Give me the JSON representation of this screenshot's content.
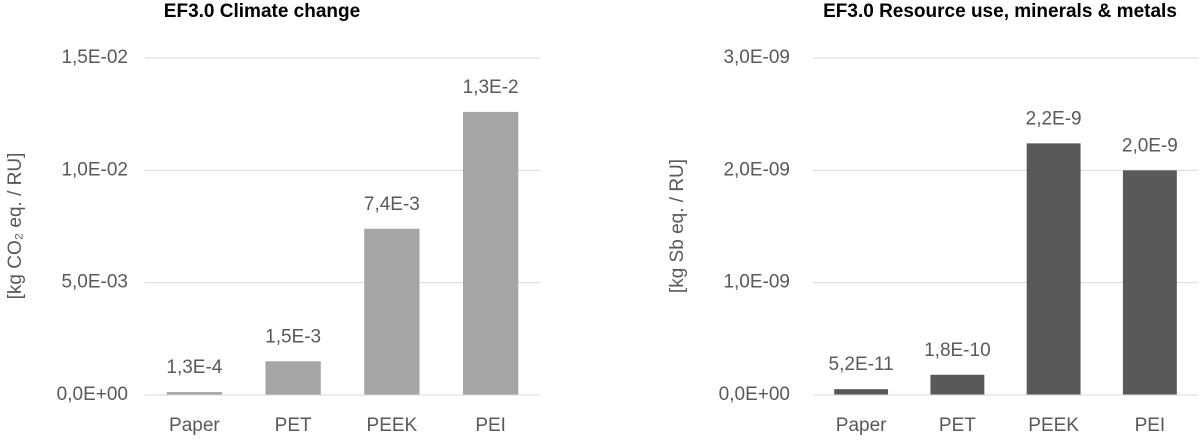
{
  "chart_data": [
    {
      "type": "bar",
      "title": "EF3.0 Climate change",
      "y_label": "[kg CO₂ eq. / RU]",
      "categories": [
        "Paper",
        "PET",
        "PEEK",
        "PEI"
      ],
      "values": [
        0.00013,
        0.0015,
        0.0074,
        0.0126
      ],
      "value_labels": [
        "1,3E-4",
        "1,5E-3",
        "7,4E-3",
        "1,3E-2"
      ],
      "color": "#a5a5a5",
      "ylim": [
        0,
        0.015
      ],
      "yticks": [
        {
          "value": 0,
          "label": "0,0E+00"
        },
        {
          "value": 0.005,
          "label": "5,0E-03"
        },
        {
          "value": 0.01,
          "label": "1,0E-02"
        },
        {
          "value": 0.015,
          "label": "1,5E-02"
        }
      ],
      "grid": true
    },
    {
      "type": "bar",
      "title": "EF3.0 Resource use, minerals & metals",
      "y_label": "[kg Sb eq. / RU]",
      "categories": [
        "Paper",
        "PET",
        "PEEK",
        "PEI"
      ],
      "values": [
        5.2e-11,
        1.8e-10,
        2.24e-09,
        2e-09
      ],
      "value_labels": [
        "5,2E-11",
        "1,8E-10",
        "2,2E-9",
        "2,0E-9"
      ],
      "color": "#595959",
      "ylim": [
        0,
        3e-09
      ],
      "yticks": [
        {
          "value": 0,
          "label": "0,0E+00"
        },
        {
          "value": 1e-09,
          "label": "1,0E-09"
        },
        {
          "value": 2e-09,
          "label": "2,0E-09"
        },
        {
          "value": 3e-09,
          "label": "3,0E-09"
        }
      ],
      "grid": true
    }
  ]
}
